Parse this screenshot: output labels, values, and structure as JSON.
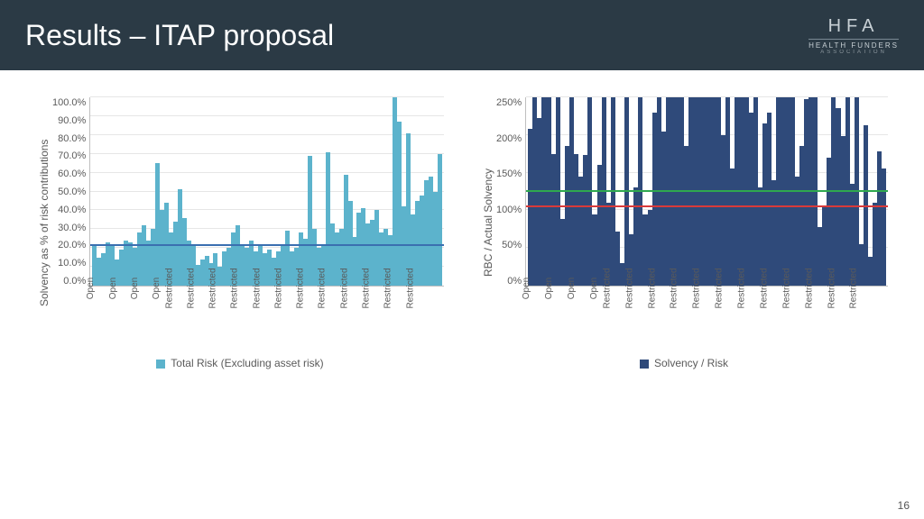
{
  "header": {
    "title": "Results – ITAP proposal"
  },
  "logo": {
    "hfa": "HFA",
    "line1": "HEALTH FUNDERS",
    "line2": "ASSOCIATION"
  },
  "page_number": "16",
  "colors": {
    "header_bg": "#2b3a45",
    "bar_left": "#5cb3cc",
    "bar_right": "#2f4a7a",
    "ref_blue": "#3b6fb0",
    "ref_green": "#2fa84f",
    "ref_red": "#d93a3a",
    "grid": "#e6e6e6"
  },
  "chart_left": {
    "type": "bar",
    "ylabel": "Solvency as % of risk contributions",
    "ylim": [
      0,
      100
    ],
    "ytick_step": 10,
    "ytick_suffix": ".0%",
    "reference_line": {
      "value": 21,
      "color": "#3b6fb0"
    },
    "bar_color": "#5cb3cc",
    "legend": "Total Risk (Excluding asset risk)",
    "legend_sw": "#5cb3cc",
    "x_labels": [
      "Open",
      "",
      "Open",
      "",
      "Open",
      "",
      "Open",
      "",
      "Restricted",
      "",
      "Restricted",
      "",
      "Restricted",
      "",
      "Restricted",
      "",
      "Restricted",
      "",
      "Restricted",
      "",
      "Restricted",
      "",
      "Restricted",
      "",
      "Restricted",
      "",
      "Restricted",
      "",
      "Restricted",
      "",
      "Restricted",
      ""
    ],
    "values": [
      21,
      15,
      17,
      23,
      22,
      14,
      19,
      24,
      23,
      20,
      28,
      32,
      24,
      30,
      65,
      40,
      44,
      28,
      34,
      51,
      36,
      24,
      22,
      11,
      14,
      16,
      12,
      17,
      10,
      18,
      20,
      28,
      32,
      22,
      20,
      24,
      18,
      22,
      17,
      19,
      15,
      18,
      22,
      29,
      18,
      20,
      28,
      25,
      69,
      30,
      20,
      22,
      71,
      33,
      28,
      30,
      59,
      45,
      26,
      39,
      41,
      33,
      35,
      40,
      28,
      30,
      27,
      100,
      87,
      42,
      81,
      38,
      45,
      48,
      56,
      58,
      50,
      70
    ]
  },
  "chart_right": {
    "type": "bar",
    "ylabel": "RBC / Actual Solvency",
    "ylim": [
      0,
      250
    ],
    "ytick_step": 50,
    "ytick_suffix": "%",
    "reference_lines": [
      {
        "value": 125,
        "color": "#2fa84f"
      },
      {
        "value": 104,
        "color": "#d93a3a"
      }
    ],
    "bar_color": "#2f4a7a",
    "legend": "Solvency / Risk",
    "legend_sw": "#2f4a7a",
    "x_labels": [
      "Open",
      "",
      "Open",
      "",
      "Open",
      "",
      "Open",
      "",
      "Restricted",
      "",
      "Restricted",
      "",
      "Restricted",
      "",
      "Restricted",
      "",
      "Restricted",
      "",
      "Restricted",
      "",
      "Restricted",
      "",
      "Restricted",
      "",
      "Restricted",
      "",
      "Restricted",
      "",
      "Restricted",
      "",
      "Restricted",
      ""
    ],
    "values": [
      208,
      250,
      222,
      250,
      250,
      175,
      250,
      88,
      185,
      250,
      175,
      145,
      174,
      250,
      95,
      160,
      250,
      110,
      250,
      72,
      30,
      250,
      68,
      130,
      250,
      95,
      100,
      230,
      250,
      205,
      250,
      250,
      250,
      250,
      186,
      250,
      250,
      250,
      250,
      250,
      250,
      250,
      200,
      250,
      155,
      250,
      250,
      250,
      230,
      250,
      130,
      215,
      230,
      140,
      250,
      250,
      250,
      250,
      145,
      185,
      248,
      250,
      250,
      78,
      105,
      170,
      250,
      236,
      198,
      250,
      135,
      250,
      55,
      213,
      38,
      110,
      178,
      155
    ]
  }
}
